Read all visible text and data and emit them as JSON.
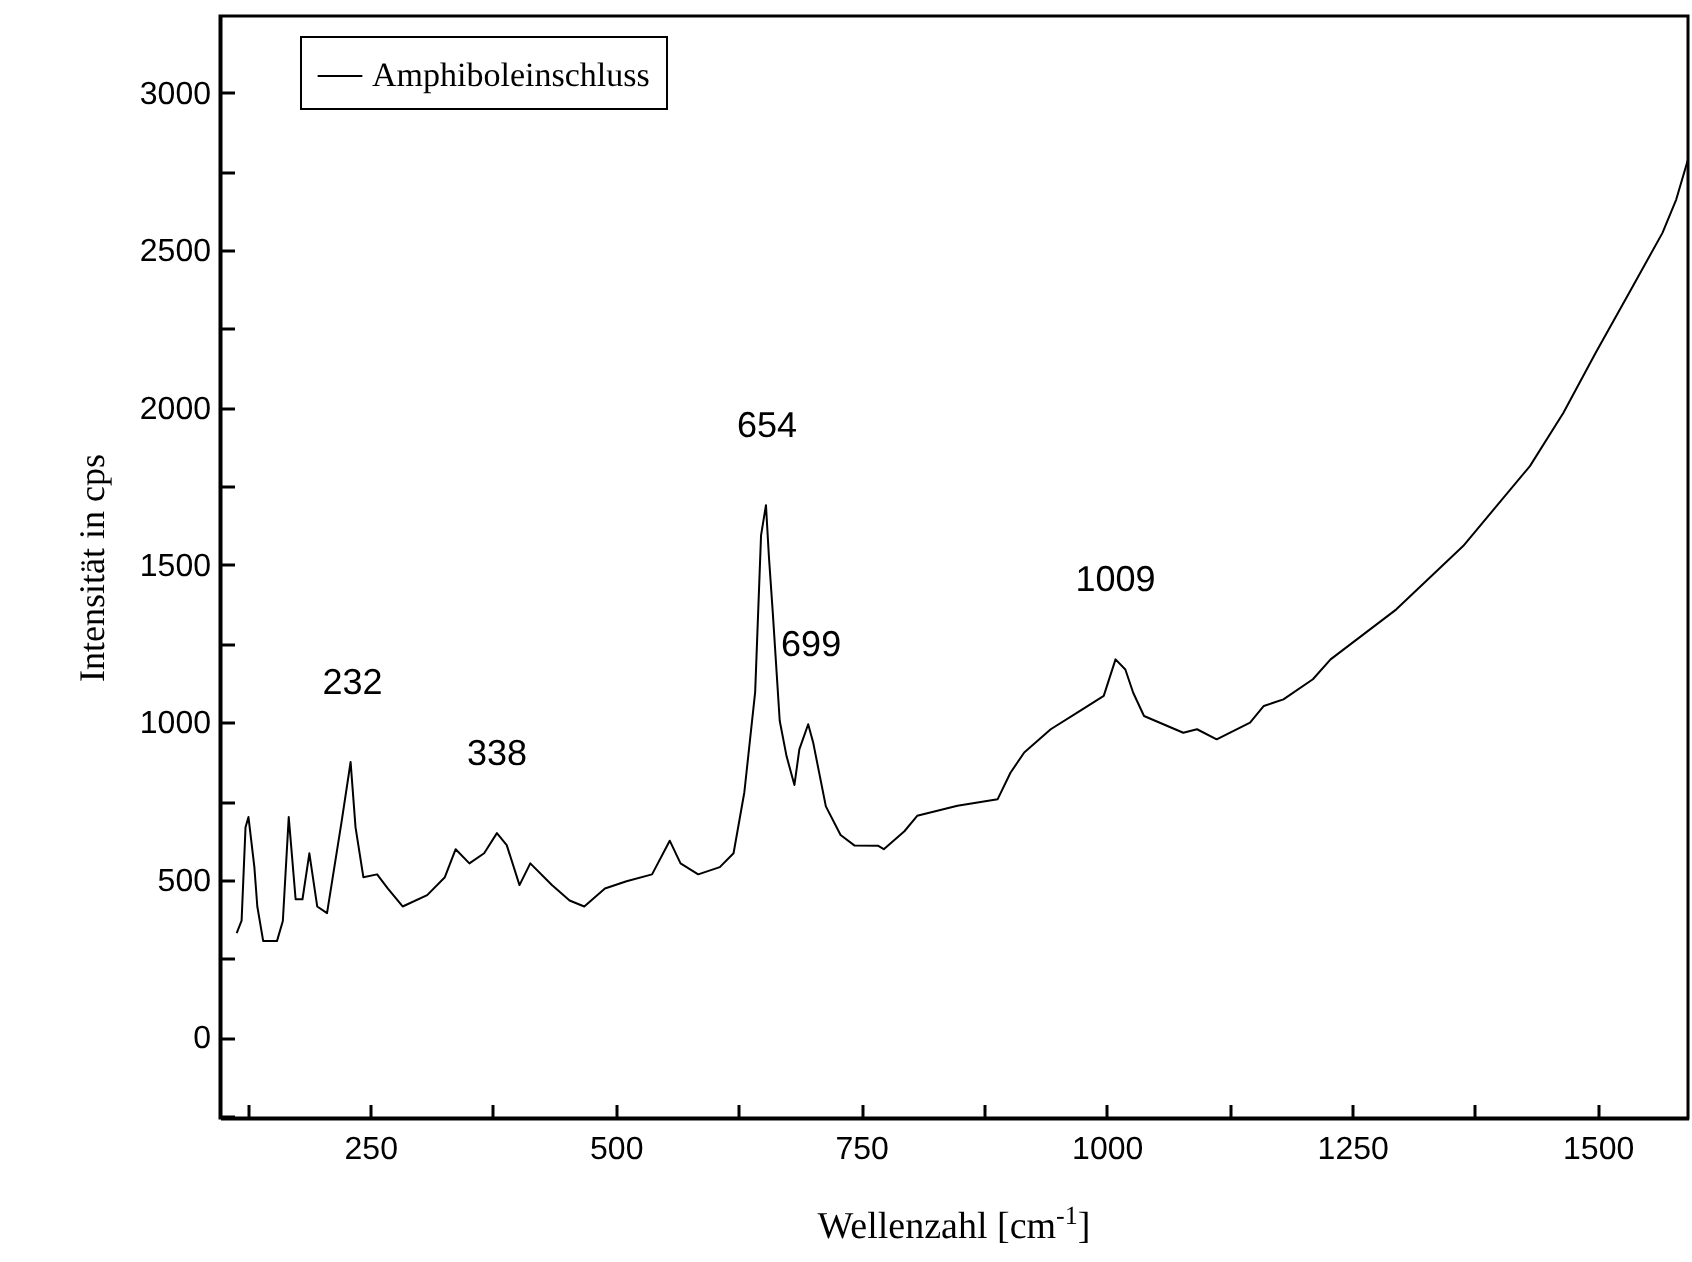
{
  "chart_data": {
    "type": "line",
    "xlabel": "Wellenzahl [cm$^{-1}$]",
    "ylabel": "Intensität in cps",
    "x": [
      114,
      119,
      123,
      126,
      132,
      135,
      141,
      155,
      161,
      167,
      174,
      181,
      188,
      196,
      206,
      221,
      230,
      235,
      243,
      257,
      268,
      283,
      308,
      326,
      337,
      351,
      366,
      379,
      389,
      402,
      413,
      435,
      453,
      468,
      489,
      511,
      537,
      555,
      566,
      584,
      606,
      620,
      631,
      642,
      648,
      653,
      656,
      660,
      667,
      674,
      682,
      687,
      696,
      701,
      714,
      729,
      743,
      767,
      773,
      794,
      807,
      848,
      889,
      902,
      916,
      943,
      970,
      997,
      1009,
      1019,
      1027,
      1038,
      1078,
      1092,
      1112,
      1146,
      1160,
      1180,
      1210,
      1228,
      1295,
      1363,
      1431,
      1465,
      1498,
      1532,
      1566,
      1580,
      1592
    ],
    "series": [
      {
        "name": "Amphiboleinschluss",
        "color": "#000000",
        "values": [
          330,
          370,
          667,
          699,
          540,
          415,
          305,
          305,
          369,
          699,
          438,
          438,
          584,
          415,
          394,
          688,
          874,
          667,
          508,
          517,
          472,
          415,
          451,
          508,
          597,
          552,
          584,
          648,
          610,
          483,
          552,
          483,
          434,
          415,
          472,
          495,
          517,
          624,
          552,
          517,
          540,
          584,
          778,
          1096,
          1594,
          1690,
          1527,
          1346,
          1005,
          892,
          801,
          914,
          994,
          937,
          733,
          642,
          609,
          608,
          597,
          654,
          703,
          735,
          756,
          840,
          904,
          978,
          1031,
          1084,
          1200,
          1168,
          1094,
          1020,
          967,
          978,
          946,
          999,
          1052,
          1073,
          1137,
          1200,
          1359,
          1560,
          1814,
          1983,
          2174,
          2364,
          2555,
          2661,
          2788
        ]
      }
    ],
    "xlim": [
      97,
      1592
    ],
    "ylim": [
      -257,
      3244
    ],
    "xticks": [
      {
        "value": 125,
        "label": null
      },
      250,
      {
        "value": 375,
        "label": null
      },
      500,
      {
        "value": 625,
        "label": null
      },
      750,
      {
        "value": 875,
        "label": null
      },
      1000,
      {
        "value": 1125,
        "label": null
      },
      1250,
      {
        "value": 1375,
        "label": null
      },
      1500
    ],
    "yticks": [
      {
        "value": -250,
        "label": null
      },
      0,
      {
        "value": 250,
        "label": null
      },
      500,
      {
        "value": 750,
        "label": null
      },
      1000,
      {
        "value": 1250,
        "label": null
      },
      1500,
      {
        "value": 1750,
        "label": null
      },
      2000,
      {
        "value": 2250,
        "label": null
      },
      2500,
      {
        "value": 2750,
        "label": null
      },
      3000
    ],
    "annotations": [
      {
        "text": "232",
        "x": 232,
        "y": 874
      },
      {
        "text": "338",
        "x": 379,
        "y": 648
      },
      {
        "text": "654",
        "x": 654,
        "y": 1690
      },
      {
        "text": "699",
        "x": 699,
        "y": 994
      },
      {
        "text": "1009",
        "x": 1009,
        "y": 1200
      }
    ],
    "legend": "top left",
    "grid": false,
    "line_style": "solid",
    "marker": "none"
  }
}
